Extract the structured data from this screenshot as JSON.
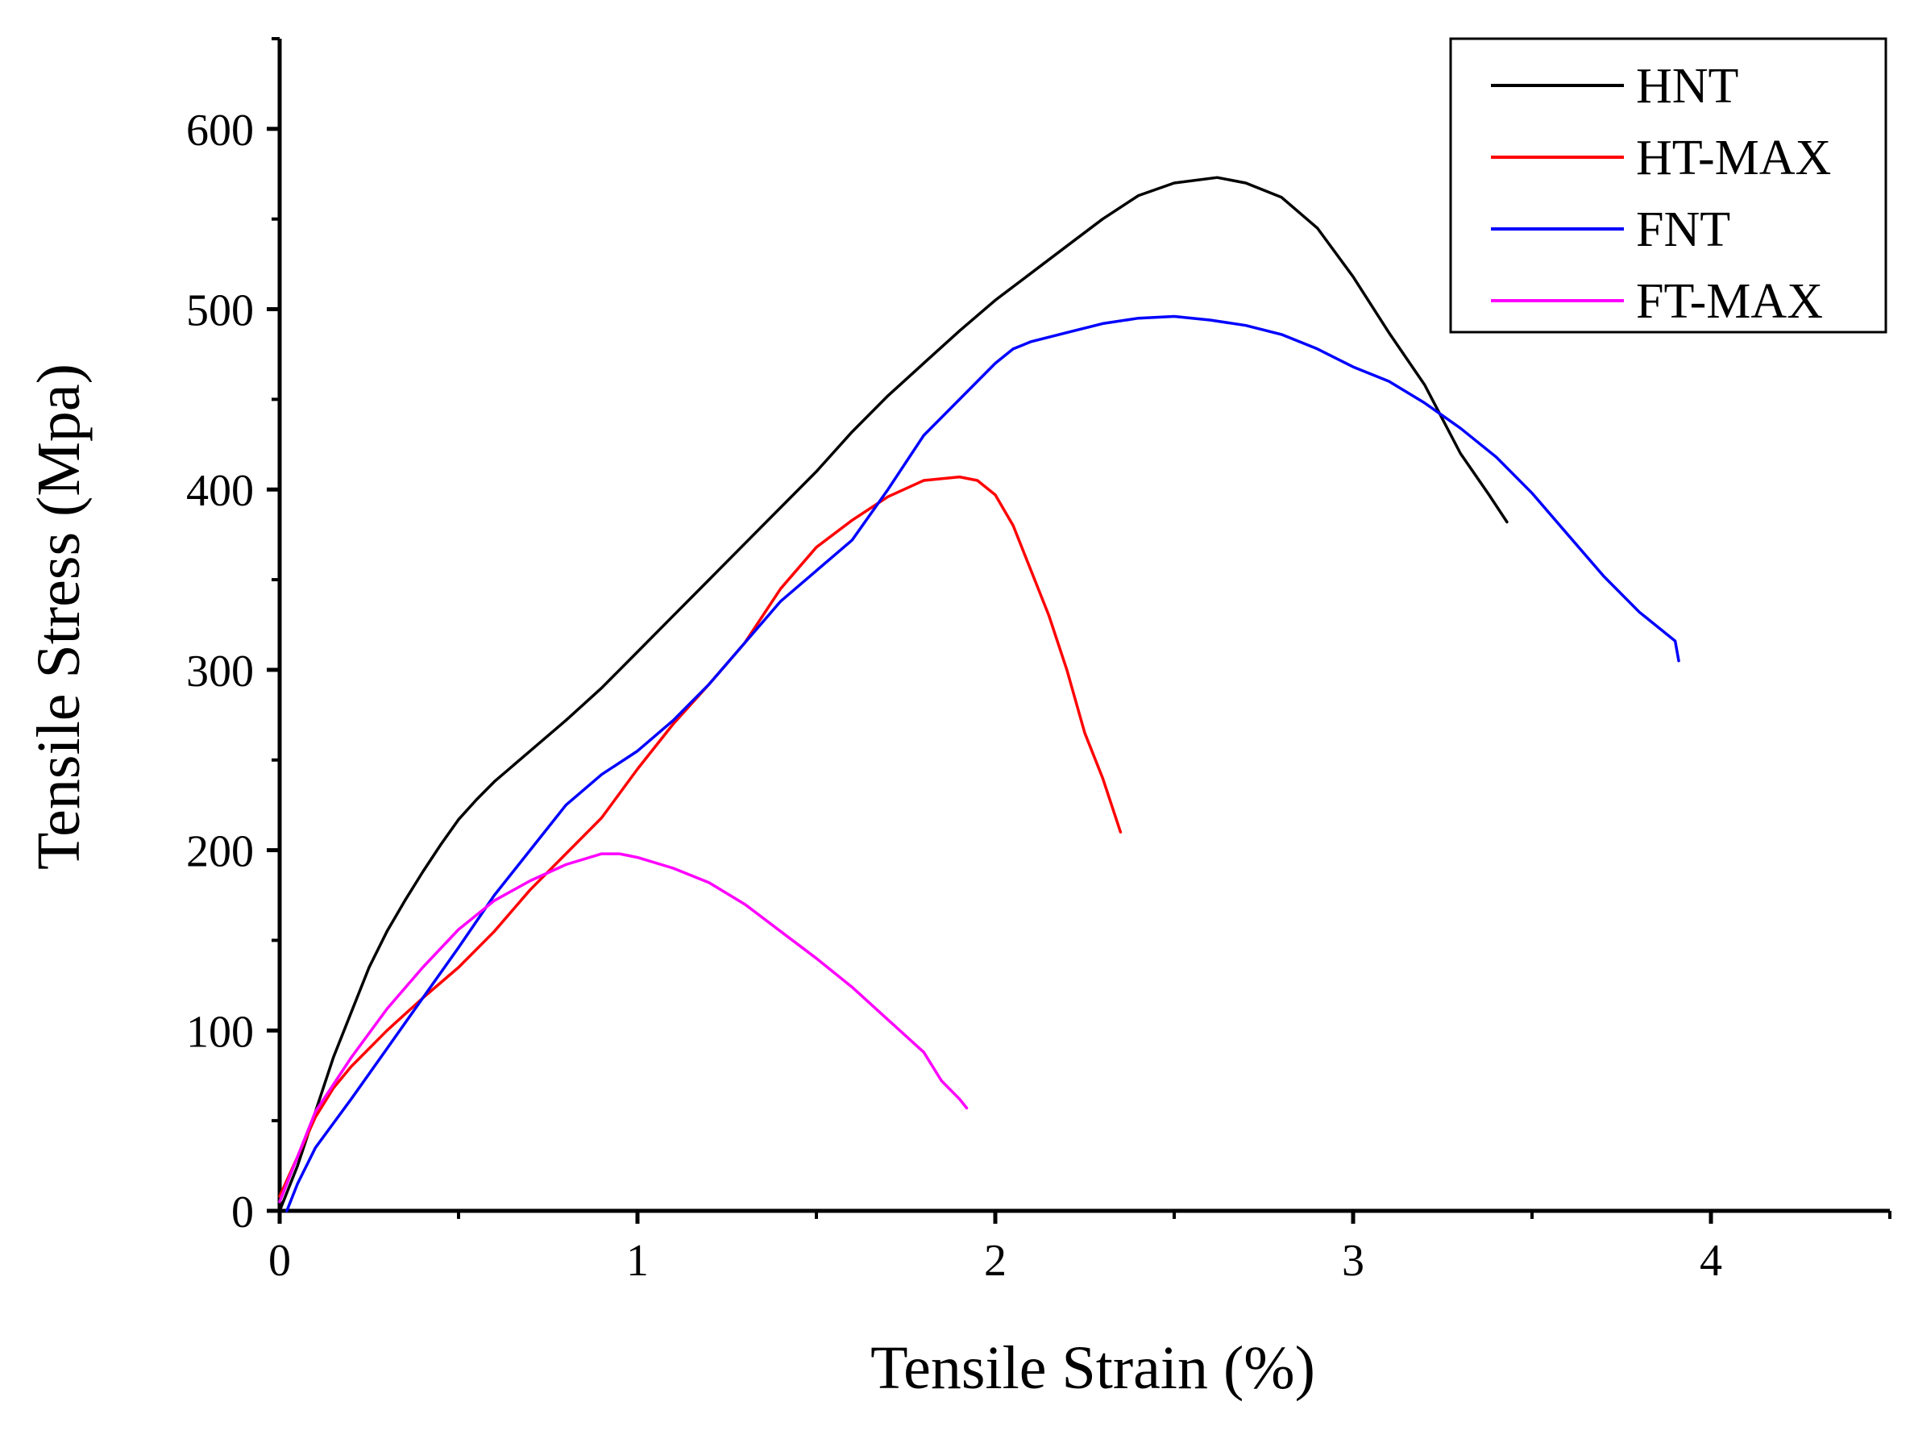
{
  "chart_data": {
    "type": "line",
    "title": "",
    "xlabel": "Tensile Strain (%)",
    "ylabel": "Tensile Stress (Mpa)",
    "xlim": [
      0,
      4.5
    ],
    "ylim": [
      0,
      650
    ],
    "xticks": [
      0,
      1,
      2,
      3,
      4
    ],
    "xtick_labels": [
      "0",
      "1",
      "2",
      "3",
      "4"
    ],
    "yticks": [
      0,
      100,
      200,
      300,
      400,
      500,
      600
    ],
    "ytick_labels": [
      "0",
      "100",
      "200",
      "300",
      "400",
      "500",
      "600"
    ],
    "grid": false,
    "legend_position": "top-right",
    "series": [
      {
        "name": "HNT",
        "color": "#000000",
        "points": [
          [
            0,
            0
          ],
          [
            0.05,
            25
          ],
          [
            0.1,
            55
          ],
          [
            0.15,
            85
          ],
          [
            0.2,
            110
          ],
          [
            0.25,
            135
          ],
          [
            0.3,
            155
          ],
          [
            0.35,
            172
          ],
          [
            0.4,
            188
          ],
          [
            0.45,
            203
          ],
          [
            0.5,
            217
          ],
          [
            0.55,
            228
          ],
          [
            0.6,
            238
          ],
          [
            0.7,
            255
          ],
          [
            0.8,
            272
          ],
          [
            0.9,
            290
          ],
          [
            1.0,
            310
          ],
          [
            1.1,
            330
          ],
          [
            1.2,
            350
          ],
          [
            1.3,
            370
          ],
          [
            1.4,
            390
          ],
          [
            1.5,
            410
          ],
          [
            1.6,
            432
          ],
          [
            1.7,
            452
          ],
          [
            1.8,
            470
          ],
          [
            1.9,
            488
          ],
          [
            2.0,
            505
          ],
          [
            2.1,
            520
          ],
          [
            2.2,
            535
          ],
          [
            2.3,
            550
          ],
          [
            2.4,
            563
          ],
          [
            2.5,
            570
          ],
          [
            2.62,
            573
          ],
          [
            2.7,
            570
          ],
          [
            2.8,
            562
          ],
          [
            2.9,
            545
          ],
          [
            3.0,
            518
          ],
          [
            3.1,
            487
          ],
          [
            3.2,
            458
          ],
          [
            3.3,
            420
          ],
          [
            3.38,
            397
          ],
          [
            3.43,
            382
          ]
        ]
      },
      {
        "name": "HT-MAX",
        "color": "#ff0000",
        "points": [
          [
            0,
            8
          ],
          [
            0.05,
            30
          ],
          [
            0.1,
            52
          ],
          [
            0.15,
            68
          ],
          [
            0.2,
            80
          ],
          [
            0.3,
            100
          ],
          [
            0.4,
            118
          ],
          [
            0.5,
            135
          ],
          [
            0.6,
            155
          ],
          [
            0.7,
            178
          ],
          [
            0.8,
            198
          ],
          [
            0.9,
            218
          ],
          [
            1.0,
            245
          ],
          [
            1.1,
            270
          ],
          [
            1.2,
            292
          ],
          [
            1.3,
            315
          ],
          [
            1.4,
            345
          ],
          [
            1.5,
            368
          ],
          [
            1.6,
            383
          ],
          [
            1.7,
            396
          ],
          [
            1.8,
            405
          ],
          [
            1.9,
            407
          ],
          [
            1.95,
            405
          ],
          [
            2.0,
            397
          ],
          [
            2.05,
            380
          ],
          [
            2.1,
            355
          ],
          [
            2.15,
            330
          ],
          [
            2.2,
            300
          ],
          [
            2.25,
            265
          ],
          [
            2.3,
            240
          ],
          [
            2.35,
            210
          ]
        ]
      },
      {
        "name": "FNT",
        "color": "#0000ff",
        "points": [
          [
            0.02,
            0
          ],
          [
            0.05,
            15
          ],
          [
            0.1,
            35
          ],
          [
            0.2,
            62
          ],
          [
            0.3,
            90
          ],
          [
            0.4,
            118
          ],
          [
            0.5,
            146
          ],
          [
            0.6,
            175
          ],
          [
            0.7,
            200
          ],
          [
            0.8,
            225
          ],
          [
            0.9,
            242
          ],
          [
            1.0,
            255
          ],
          [
            1.1,
            272
          ],
          [
            1.2,
            292
          ],
          [
            1.3,
            315
          ],
          [
            1.4,
            338
          ],
          [
            1.5,
            355
          ],
          [
            1.6,
            372
          ],
          [
            1.7,
            400
          ],
          [
            1.8,
            430
          ],
          [
            1.9,
            450
          ],
          [
            2.0,
            470
          ],
          [
            2.05,
            478
          ],
          [
            2.1,
            482
          ],
          [
            2.2,
            487
          ],
          [
            2.3,
            492
          ],
          [
            2.4,
            495
          ],
          [
            2.5,
            496
          ],
          [
            2.6,
            494
          ],
          [
            2.7,
            491
          ],
          [
            2.8,
            486
          ],
          [
            2.9,
            478
          ],
          [
            3.0,
            468
          ],
          [
            3.1,
            460
          ],
          [
            3.2,
            448
          ],
          [
            3.3,
            434
          ],
          [
            3.4,
            418
          ],
          [
            3.5,
            398
          ],
          [
            3.6,
            375
          ],
          [
            3.7,
            352
          ],
          [
            3.8,
            332
          ],
          [
            3.9,
            316
          ],
          [
            3.91,
            305
          ]
        ]
      },
      {
        "name": "FT-MAX",
        "color": "#ff00ff",
        "points": [
          [
            0,
            5
          ],
          [
            0.05,
            30
          ],
          [
            0.1,
            55
          ],
          [
            0.2,
            85
          ],
          [
            0.3,
            112
          ],
          [
            0.4,
            135
          ],
          [
            0.5,
            156
          ],
          [
            0.6,
            172
          ],
          [
            0.7,
            183
          ],
          [
            0.8,
            192
          ],
          [
            0.9,
            198
          ],
          [
            0.95,
            198
          ],
          [
            1.0,
            196
          ],
          [
            1.1,
            190
          ],
          [
            1.2,
            182
          ],
          [
            1.3,
            170
          ],
          [
            1.4,
            155
          ],
          [
            1.5,
            140
          ],
          [
            1.6,
            124
          ],
          [
            1.7,
            106
          ],
          [
            1.8,
            88
          ],
          [
            1.85,
            72
          ],
          [
            1.9,
            62
          ],
          [
            1.92,
            57
          ]
        ]
      }
    ]
  }
}
